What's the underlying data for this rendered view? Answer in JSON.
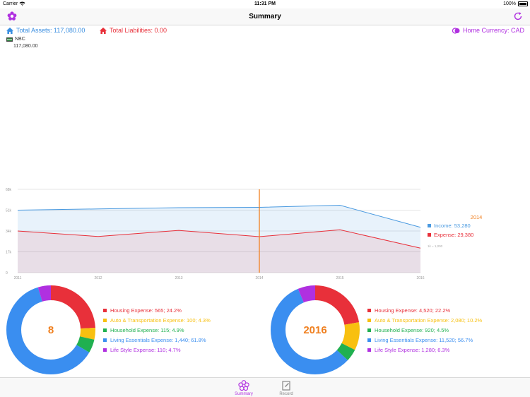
{
  "status_bar": {
    "carrier": "Carrier",
    "time": "11:31 PM",
    "battery": "100%"
  },
  "nav": {
    "title": "Summary",
    "left_icon": "flower-icon",
    "right_icon": "refresh-icon"
  },
  "summary": {
    "total_assets": "Total Assets: 117,080.00",
    "total_liabilities": "Total Liabilities: 0.00",
    "home_currency": "Home Currency: CAD"
  },
  "account": {
    "name": "NBC",
    "balance": "117,080.00"
  },
  "colors": {
    "income": "#4a9ae0",
    "expense": "#e8303a",
    "accent": "#f08020",
    "purple": "#b030e0"
  },
  "chart_data": {
    "type": "area",
    "x": [
      "2011",
      "2012",
      "2013",
      "2014",
      "2015",
      "2016"
    ],
    "yticks": [
      "0",
      "17k",
      "34k",
      "51k",
      "68k"
    ],
    "ylim": [
      0,
      68000
    ],
    "series": [
      {
        "name": "Income",
        "values": [
          51000,
          52000,
          53000,
          53280,
          55000,
          37000
        ]
      },
      {
        "name": "Expense",
        "values": [
          34000,
          29500,
          34500,
          29380,
          35000,
          20000
        ]
      }
    ],
    "selected_year": "2014",
    "legend": [
      {
        "label": "Income: 53,280",
        "color": "#4a9ae0"
      },
      {
        "label": "Expense: 29,380",
        "color": "#e8303a"
      }
    ],
    "unit_note": "1k = 1,000",
    "grid": true
  },
  "donut_charts": [
    {
      "center": "8",
      "slices": [
        {
          "label": "Housing Expense: 565; 24.2%",
          "pct": 24.2,
          "color": "#e8303a"
        },
        {
          "label": "Auto & Transportation Expense: 100; 4.3%",
          "pct": 4.3,
          "color": "#f8c010"
        },
        {
          "label": "Household Expense: 115; 4.9%",
          "pct": 4.9,
          "color": "#20b050"
        },
        {
          "label": "Living Essentials Expense: 1,440; 61.8%",
          "pct": 61.8,
          "color": "#3a8ef0"
        },
        {
          "label": "Life Style Expense: 110; 4.7%",
          "pct": 4.7,
          "color": "#b030e0"
        }
      ]
    },
    {
      "center": "2016",
      "slices": [
        {
          "label": "Housing Expense: 4,520; 22.2%",
          "pct": 22.2,
          "color": "#e8303a"
        },
        {
          "label": "Auto & Transportation Expense: 2,080; 10.2%",
          "pct": 10.2,
          "color": "#f8c010"
        },
        {
          "label": "Household Expense: 920; 4.5%",
          "pct": 4.5,
          "color": "#20b050"
        },
        {
          "label": "Living Essentials Expense: 11,520; 56.7%",
          "pct": 56.7,
          "color": "#3a8ef0"
        },
        {
          "label": "Life Style Expense: 1,280; 6.3%",
          "pct": 6.3,
          "color": "#b030e0"
        }
      ]
    }
  ],
  "tabs": [
    {
      "label": "Summary",
      "icon": "flower-icon",
      "active": true
    },
    {
      "label": "Record",
      "icon": "notebook-icon",
      "active": false
    }
  ]
}
